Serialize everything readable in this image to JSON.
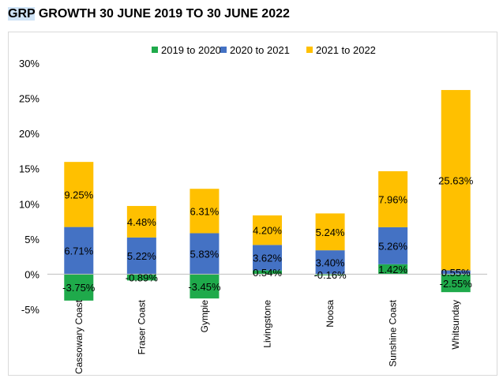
{
  "title_prefix": "GRP",
  "title_rest": " GROWTH 30 JUNE 2019 TO 30 JUNE 2022",
  "colors": {
    "s2019": "#1faa4b",
    "s2020": "#4472c4",
    "s2021": "#ffc000"
  },
  "chart_data": {
    "type": "bar",
    "stacked": true,
    "categories": [
      "Cassowary Coast",
      "Fraser Coast",
      "Gympie",
      "Livingstone",
      "Noosa",
      "Sunshine Coast",
      "Whitsunday"
    ],
    "series": [
      {
        "name": "2019 to 2020",
        "values": [
          -3.75,
          -0.89,
          -3.45,
          0.54,
          -0.16,
          1.42,
          -2.55
        ],
        "labels": [
          "-3.75%",
          "-0.89%",
          "-3.45%",
          "0.54%",
          "-0.16%",
          "1.42%",
          "-2.55%"
        ]
      },
      {
        "name": "2020 to 2021",
        "values": [
          6.71,
          5.22,
          5.83,
          3.62,
          3.4,
          5.26,
          0.55
        ],
        "labels": [
          "6.71%",
          "5.22%",
          "5.83%",
          "3.62%",
          "3.40%",
          "5.26%",
          "0.55%"
        ]
      },
      {
        "name": "2021 to 2022",
        "values": [
          9.25,
          4.48,
          6.31,
          4.2,
          5.24,
          7.96,
          25.63
        ],
        "labels": [
          "9.25%",
          "4.48%",
          "6.31%",
          "4.20%",
          "5.24%",
          "7.96%",
          "25.63%"
        ]
      }
    ],
    "ylim": [
      -5,
      30
    ],
    "yticks": [
      -5,
      0,
      5,
      10,
      15,
      20,
      25,
      30
    ],
    "ytick_labels": [
      "-5%",
      "0%",
      "5%",
      "10%",
      "15%",
      "20%",
      "25%",
      "30%"
    ],
    "legend_position": "top",
    "grid": false
  }
}
